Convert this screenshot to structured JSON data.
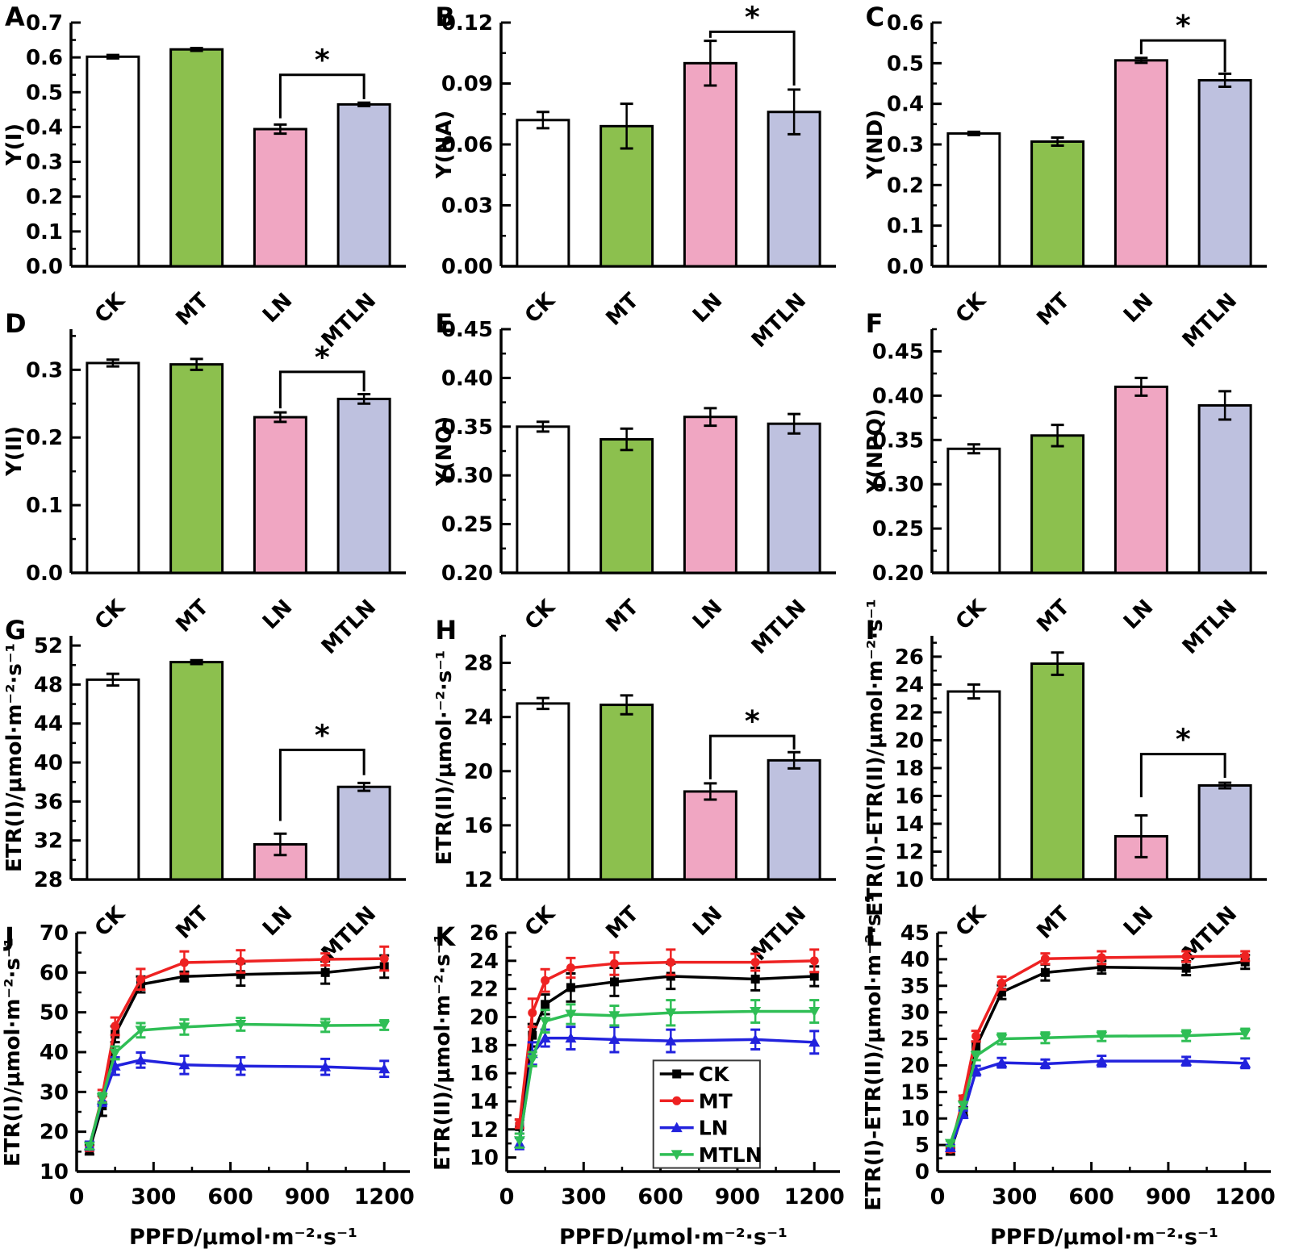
{
  "figure": {
    "groups": [
      "CK",
      "MT",
      "LN",
      "MTLN"
    ],
    "bar_colors": [
      "#FFFFFF",
      "#8CC04E",
      "#F0A6C2",
      "#BEC1DF"
    ],
    "bar_edge_color": "#000000",
    "line_groups": [
      {
        "name": "CK",
        "color": "#000000",
        "marker": "square"
      },
      {
        "name": "MT",
        "color": "#EE2222",
        "marker": "circle"
      },
      {
        "name": "LN",
        "color": "#2222DD",
        "marker": "triangle-up"
      },
      {
        "name": "MTLN",
        "color": "#2FBE55",
        "marker": "triangle-down"
      }
    ],
    "significance_symbol": "*"
  },
  "chart_data": [
    {
      "id": "A",
      "type": "bar",
      "ylabel": "Y(I)",
      "categories": [
        "CK",
        "MT",
        "LN",
        "MTLN"
      ],
      "values": [
        0.602,
        0.623,
        0.394,
        0.465
      ],
      "errors": [
        0.005,
        0.004,
        0.013,
        0.005
      ],
      "ylim": [
        0,
        0.7
      ],
      "ticks": {
        "start": 0,
        "end": 0.7,
        "step": 0.1,
        "decimals": 1
      },
      "sig": {
        "i1": 2,
        "i2": 3,
        "y": 0.55,
        "d1": 0.425,
        "d2": 0.48,
        "label": "*"
      }
    },
    {
      "id": "B",
      "type": "bar",
      "ylabel": "Y(NA)",
      "categories": [
        "CK",
        "MT",
        "LN",
        "MTLN"
      ],
      "values": [
        0.072,
        0.069,
        0.1,
        0.076
      ],
      "errors": [
        0.004,
        0.011,
        0.011,
        0.011
      ],
      "ylim": [
        0,
        0.12
      ],
      "ticks": {
        "start": 0,
        "end": 0.12,
        "step": 0.03,
        "decimals": 2
      },
      "sig": {
        "i1": 2,
        "i2": 3,
        "y": 0.1155,
        "d1": 0.1125,
        "d2": 0.089,
        "label": "*"
      }
    },
    {
      "id": "C",
      "type": "bar",
      "ylabel": "Y(ND)",
      "categories": [
        "CK",
        "MT",
        "LN",
        "MTLN"
      ],
      "values": [
        0.327,
        0.307,
        0.507,
        0.458
      ],
      "errors": [
        0.004,
        0.01,
        0.006,
        0.016
      ],
      "ylim": [
        0,
        0.6
      ],
      "ticks": {
        "start": 0,
        "end": 0.6,
        "step": 0.1,
        "decimals": 1
      },
      "sig": {
        "i1": 2,
        "i2": 3,
        "y": 0.556,
        "d1": 0.522,
        "d2": 0.478,
        "label": "*"
      }
    },
    {
      "id": "D",
      "type": "bar",
      "ylabel": "Y(II)",
      "categories": [
        "CK",
        "MT",
        "LN",
        "MTLN"
      ],
      "values": [
        0.31,
        0.308,
        0.23,
        0.257
      ],
      "errors": [
        0.005,
        0.008,
        0.007,
        0.007
      ],
      "ylim": [
        0,
        0.36
      ],
      "ticks": {
        "start": 0,
        "end": 0.3,
        "step": 0.1,
        "decimals": 1
      },
      "sig": {
        "i1": 2,
        "i2": 3,
        "y": 0.297,
        "d1": 0.243,
        "d2": 0.268,
        "label": "*"
      }
    },
    {
      "id": "E",
      "type": "bar",
      "ylabel": "Y(NO)",
      "categories": [
        "CK",
        "MT",
        "LN",
        "MTLN"
      ],
      "values": [
        0.35,
        0.337,
        0.36,
        0.353
      ],
      "errors": [
        0.005,
        0.011,
        0.009,
        0.01
      ],
      "ylim": [
        0.2,
        0.45
      ],
      "ticks": {
        "start": 0.2,
        "end": 0.45,
        "step": 0.05,
        "decimals": 2
      },
      "sig": null
    },
    {
      "id": "F",
      "type": "bar",
      "ylabel": "Y(NPQ)",
      "categories": [
        "CK",
        "MT",
        "LN",
        "MTLN"
      ],
      "values": [
        0.34,
        0.355,
        0.41,
        0.389
      ],
      "errors": [
        0.005,
        0.012,
        0.01,
        0.016
      ],
      "ylim": [
        0.2,
        0.475
      ],
      "ticks": {
        "start": 0.2,
        "end": 0.45,
        "step": 0.05,
        "decimals": 2
      },
      "sig": null
    },
    {
      "id": "G",
      "type": "bar",
      "ylabel": "ETR(I)/μmol·m⁻²·s⁻¹",
      "categories": [
        "CK",
        "MT",
        "LN",
        "MTLN"
      ],
      "values": [
        48.5,
        50.3,
        31.6,
        37.5
      ],
      "errors": [
        0.6,
        0.2,
        1.1,
        0.4
      ],
      "ylim": [
        28,
        53
      ],
      "ticks": {
        "start": 28,
        "end": 52,
        "step": 4,
        "decimals": 0
      },
      "sig": {
        "i1": 2,
        "i2": 3,
        "y": 41.3,
        "d1": 34.0,
        "d2": 38.7,
        "label": "*"
      }
    },
    {
      "id": "H",
      "type": "bar",
      "ylabel": "ETR(II)/μmol·⁻²·s⁻¹",
      "categories": [
        "CK",
        "MT",
        "LN",
        "MTLN"
      ],
      "values": [
        25.0,
        24.9,
        18.5,
        20.8
      ],
      "errors": [
        0.4,
        0.7,
        0.6,
        0.6
      ],
      "ylim": [
        12,
        30
      ],
      "ticks": {
        "start": 12,
        "end": 28,
        "step": 4,
        "decimals": 0
      },
      "sig": {
        "i1": 2,
        "i2": 3,
        "y": 22.6,
        "d1": 19.4,
        "d2": 21.6,
        "label": "*"
      }
    },
    {
      "id": "I",
      "type": "bar",
      "ylabel": "ETR(I)-ETR(II)/μmol·m⁻²·s⁻¹",
      "categories": [
        "CK",
        "MT",
        "LN",
        "MTLN"
      ],
      "values": [
        23.5,
        25.5,
        13.1,
        16.75
      ],
      "errors": [
        0.5,
        0.8,
        1.5,
        0.2
      ],
      "ylim": [
        10,
        27.5
      ],
      "ticks": {
        "start": 10,
        "end": 26,
        "step": 2,
        "decimals": 0
      },
      "sig": {
        "i1": 2,
        "i2": 3,
        "y": 19.0,
        "d1": 15.9,
        "d2": 17.3,
        "label": "*"
      }
    },
    {
      "id": "J",
      "type": "line",
      "ylabel": "ETR(I)/μmol·m⁻²·s⁻¹",
      "xlabel": "PPFD/μmol·m⁻²·s⁻¹",
      "x": [
        50,
        100,
        150,
        250,
        420,
        640,
        970,
        1200
      ],
      "xlim": [
        0,
        1300
      ],
      "xticks": [
        0,
        300,
        600,
        900,
        1200
      ],
      "ylim": [
        10,
        70
      ],
      "ticks": {
        "start": 10,
        "end": 70,
        "step": 10,
        "decimals": 0
      },
      "legend": false,
      "series": [
        {
          "name": "CK",
          "values": [
            15.5,
            26.5,
            44.5,
            57.0,
            59.0,
            59.5,
            60.0,
            61.5
          ],
          "errors": [
            1.2,
            2.5,
            2.0,
            2.0,
            1.2,
            2.8,
            2.8,
            2.8
          ]
        },
        {
          "name": "MT",
          "values": [
            16.2,
            29.0,
            46.5,
            58.3,
            62.5,
            62.8,
            63.3,
            63.5
          ],
          "errors": [
            1.0,
            1.5,
            2.2,
            2.6,
            2.8,
            2.8,
            1.5,
            3.0
          ]
        },
        {
          "name": "LN",
          "values": [
            16.5,
            28.0,
            36.5,
            38.0,
            36.8,
            36.5,
            36.3,
            35.8
          ],
          "errors": [
            1.0,
            1.5,
            2.2,
            1.9,
            2.3,
            2.2,
            2.0,
            2.0
          ]
        },
        {
          "name": "MTLN",
          "values": [
            16.4,
            28.5,
            39.8,
            45.5,
            46.3,
            47.0,
            46.7,
            46.8
          ],
          "errors": [
            0.8,
            1.2,
            1.6,
            1.8,
            1.9,
            1.6,
            1.6,
            1.2
          ]
        }
      ]
    },
    {
      "id": "K",
      "type": "line",
      "ylabel": "ETR(II)/μmol·m⁻²·s⁻¹",
      "xlabel": "PPFD/μmol·m⁻²·s⁻¹",
      "x": [
        50,
        100,
        150,
        250,
        420,
        640,
        970,
        1200
      ],
      "xlim": [
        0,
        1300
      ],
      "xticks": [
        0,
        300,
        600,
        900,
        1200
      ],
      "ylim": [
        9,
        26
      ],
      "ticks": {
        "start": 10,
        "end": 26,
        "step": 2,
        "decimals": 0
      },
      "legend": true,
      "series": [
        {
          "name": "CK",
          "values": [
            12.2,
            18.7,
            20.9,
            22.1,
            22.5,
            22.9,
            22.7,
            22.9
          ],
          "errors": [
            0.5,
            0.8,
            0.7,
            1.0,
            1.0,
            0.9,
            0.8,
            0.7
          ]
        },
        {
          "name": "MT",
          "values": [
            12.4,
            20.3,
            22.6,
            23.5,
            23.8,
            23.9,
            23.9,
            24.0
          ],
          "errors": [
            0.3,
            1.0,
            0.8,
            0.7,
            0.8,
            0.9,
            0.6,
            0.8
          ]
        },
        {
          "name": "LN",
          "values": [
            11.0,
            17.4,
            18.5,
            18.5,
            18.4,
            18.3,
            18.4,
            18.2
          ],
          "errors": [
            0.4,
            0.8,
            0.6,
            0.8,
            0.9,
            0.8,
            0.7,
            0.8
          ]
        },
        {
          "name": "MTLN",
          "values": [
            11.2,
            17.0,
            19.7,
            20.2,
            20.1,
            20.3,
            20.4,
            20.4
          ],
          "errors": [
            0.5,
            0.5,
            0.8,
            0.7,
            0.7,
            0.9,
            0.8,
            0.8
          ]
        }
      ]
    },
    {
      "id": "L",
      "type": "line",
      "ylabel": "ETR(I)-ETR(II)/μmol·m⁻²·s⁻¹",
      "xlabel": "PPFD/μmol·m⁻²·s⁻¹",
      "x": [
        50,
        100,
        150,
        250,
        420,
        640,
        970,
        1200
      ],
      "xlim": [
        0,
        1300
      ],
      "xticks": [
        0,
        300,
        600,
        900,
        1200
      ],
      "ylim": [
        0,
        45
      ],
      "ticks": {
        "start": 0,
        "end": 45,
        "step": 5,
        "decimals": 0
      },
      "legend": false,
      "series": [
        {
          "name": "CK",
          "values": [
            3.8,
            11.3,
            23.5,
            33.8,
            37.5,
            38.5,
            38.3,
            39.5
          ],
          "errors": [
            0.6,
            0.8,
            1.0,
            1.3,
            1.5,
            1.2,
            1.3,
            1.3
          ]
        },
        {
          "name": "MT",
          "values": [
            4.2,
            13.8,
            25.5,
            35.5,
            40.1,
            40.3,
            40.5,
            40.6
          ],
          "errors": [
            0.5,
            0.5,
            1.0,
            1.2,
            1.0,
            1.2,
            1.0,
            0.9
          ]
        },
        {
          "name": "LN",
          "values": [
            4.5,
            10.8,
            19.0,
            20.5,
            20.3,
            20.8,
            20.8,
            20.4
          ],
          "errors": [
            0.5,
            0.7,
            0.9,
            0.9,
            0.8,
            1.0,
            0.8,
            0.9
          ]
        },
        {
          "name": "MTLN",
          "values": [
            5.3,
            12.5,
            21.8,
            25.0,
            25.2,
            25.5,
            25.6,
            26.0
          ],
          "errors": [
            0.5,
            0.6,
            0.8,
            1.0,
            1.0,
            0.9,
            1.0,
            0.9
          ]
        }
      ]
    }
  ]
}
